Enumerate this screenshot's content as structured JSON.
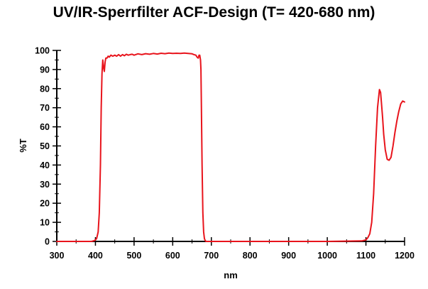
{
  "chart_data": {
    "type": "line",
    "title": "UV/IR-Sperrfilter ACF-Design (T= 420-680 nm)",
    "xlabel": "nm",
    "ylabel": "%T",
    "xlim": [
      300,
      1200
    ],
    "ylim": [
      0,
      100
    ],
    "x_ticks": [
      300,
      400,
      500,
      600,
      700,
      800,
      900,
      1000,
      1100,
      1200
    ],
    "y_ticks": [
      0,
      10,
      20,
      30,
      40,
      50,
      60,
      70,
      80,
      90,
      100
    ],
    "grid": false,
    "series_color": "#e8141c",
    "series": [
      {
        "x": [
          300,
          390,
          398,
          403,
          407,
          410,
          413,
          415,
          417,
          419,
          421,
          423,
          425,
          427,
          430,
          433,
          436,
          440,
          445,
          450,
          455,
          460,
          465,
          470,
          475,
          480,
          485,
          490,
          495,
          500,
          510,
          520,
          530,
          540,
          550,
          560,
          570,
          580,
          590,
          600,
          610,
          620,
          630,
          640,
          650,
          655,
          660,
          663,
          666,
          668,
          670,
          672,
          673,
          674,
          676,
          678,
          680,
          682,
          684,
          686,
          690,
          695,
          700,
          800,
          900,
          1000,
          1090,
          1100,
          1105,
          1110,
          1115,
          1120,
          1125,
          1130,
          1135,
          1138,
          1140,
          1143,
          1146,
          1150,
          1155,
          1160,
          1165,
          1170,
          1175,
          1180,
          1185,
          1190,
          1195,
          1200
        ],
        "y": [
          0,
          0,
          0.5,
          1.5,
          5,
          15,
          40,
          70,
          88,
          95,
          91,
          89,
          94,
          96,
          96,
          97,
          96.5,
          97.5,
          97,
          97.5,
          97,
          97.8,
          97,
          97.8,
          97.2,
          98,
          97.5,
          97.8,
          98,
          97.5,
          98.2,
          97.8,
          98.3,
          98,
          98.4,
          98.1,
          98.5,
          98.3,
          98.6,
          98.4,
          98.5,
          98.4,
          98.6,
          98.4,
          98.2,
          97.8,
          97.5,
          96.5,
          96,
          97.5,
          97.5,
          95,
          90,
          75,
          40,
          15,
          5,
          1.5,
          0.5,
          0,
          0,
          0,
          0,
          0,
          0,
          0,
          0.3,
          0.8,
          2,
          4,
          10,
          25,
          50,
          70,
          79.5,
          78,
          73,
          65,
          56,
          48,
          43,
          42.5,
          44,
          50,
          57,
          63,
          68,
          72,
          73.5,
          73
        ]
      }
    ]
  }
}
